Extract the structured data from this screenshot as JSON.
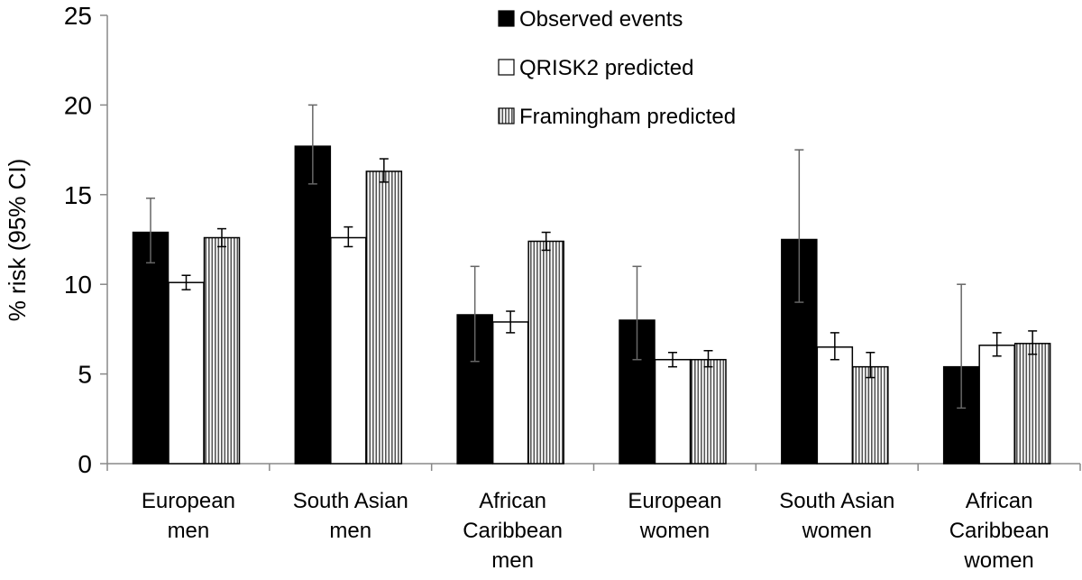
{
  "chart_data": {
    "type": "bar",
    "title": "",
    "xlabel": "",
    "ylabel": "% risk (95% CI)",
    "ylim": [
      0,
      25
    ],
    "yticks": [
      0,
      5,
      10,
      15,
      20,
      25
    ],
    "grid": false,
    "legend_position": "top-center",
    "categories": [
      [
        "European",
        "men"
      ],
      [
        "South Asian",
        "men"
      ],
      [
        "African",
        "Caribbean",
        "men"
      ],
      [
        "European",
        "women"
      ],
      [
        "South Asian",
        "women"
      ],
      [
        "African",
        "Caribbean",
        "women"
      ]
    ],
    "series": [
      {
        "name": "Observed events",
        "style": "solid",
        "color": "#000000",
        "values": [
          12.9,
          17.7,
          8.3,
          8.0,
          12.5,
          5.4
        ],
        "ci_low": [
          11.2,
          15.6,
          5.7,
          5.8,
          9.0,
          3.1
        ],
        "ci_high": [
          14.8,
          20.0,
          11.0,
          11.0,
          17.5,
          10.0
        ]
      },
      {
        "name": "QRISK2 predicted",
        "style": "white",
        "color": "#ffffff",
        "values": [
          10.1,
          12.6,
          7.9,
          5.8,
          6.5,
          6.6
        ],
        "ci_low": [
          9.7,
          12.1,
          7.3,
          5.4,
          5.8,
          6.0
        ],
        "ci_high": [
          10.5,
          13.2,
          8.5,
          6.2,
          7.3,
          7.3
        ]
      },
      {
        "name": "Framingham predicted",
        "style": "vertical-stripes",
        "color": "#808080",
        "values": [
          12.6,
          16.3,
          12.4,
          5.8,
          5.4,
          6.7
        ],
        "ci_low": [
          12.1,
          15.7,
          11.9,
          5.4,
          4.8,
          6.1
        ],
        "ci_high": [
          13.1,
          17.0,
          12.9,
          6.3,
          6.2,
          7.4
        ]
      }
    ]
  }
}
